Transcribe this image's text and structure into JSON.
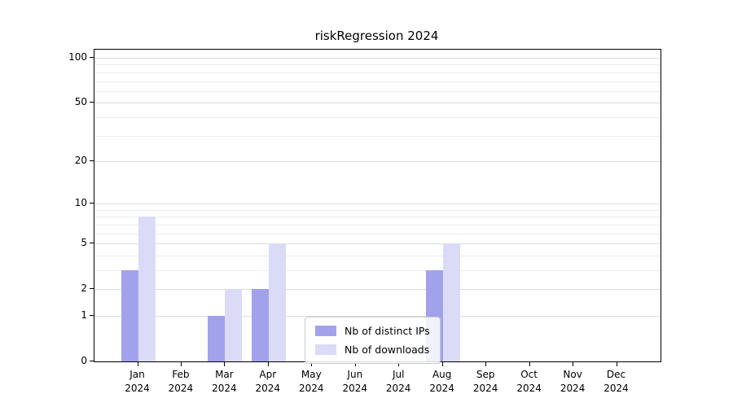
{
  "chart_data": {
    "type": "bar",
    "title": "riskRegression 2024",
    "categories": [
      "Jan 2024",
      "Feb 2024",
      "Mar 2024",
      "Apr 2024",
      "May 2024",
      "Jun 2024",
      "Jul 2024",
      "Aug 2024",
      "Sep 2024",
      "Oct 2024",
      "Nov 2024",
      "Dec 2024"
    ],
    "series": [
      {
        "name": "Nb of distinct IPs",
        "color": "#a2a2ec",
        "values": [
          3,
          0,
          1,
          2,
          0,
          0,
          0,
          3,
          0,
          0,
          0,
          0
        ]
      },
      {
        "name": "Nb of downloads",
        "color": "#dbdbf8",
        "values": [
          8,
          0,
          2,
          5,
          0,
          0,
          0,
          5,
          0,
          0,
          0,
          0
        ]
      }
    ],
    "yscale": "log1p",
    "yticks": [
      0,
      1,
      2,
      5,
      10,
      20,
      50,
      100
    ],
    "minor_yticks": [
      3,
      4,
      6,
      7,
      8,
      9,
      30,
      40,
      60,
      70,
      80,
      90
    ],
    "ylim": [
      0,
      100
    ],
    "grid": true,
    "legend_position": "lower center",
    "legend_labels": [
      "Nb of distinct IPs",
      "Nb of downloads"
    ]
  }
}
